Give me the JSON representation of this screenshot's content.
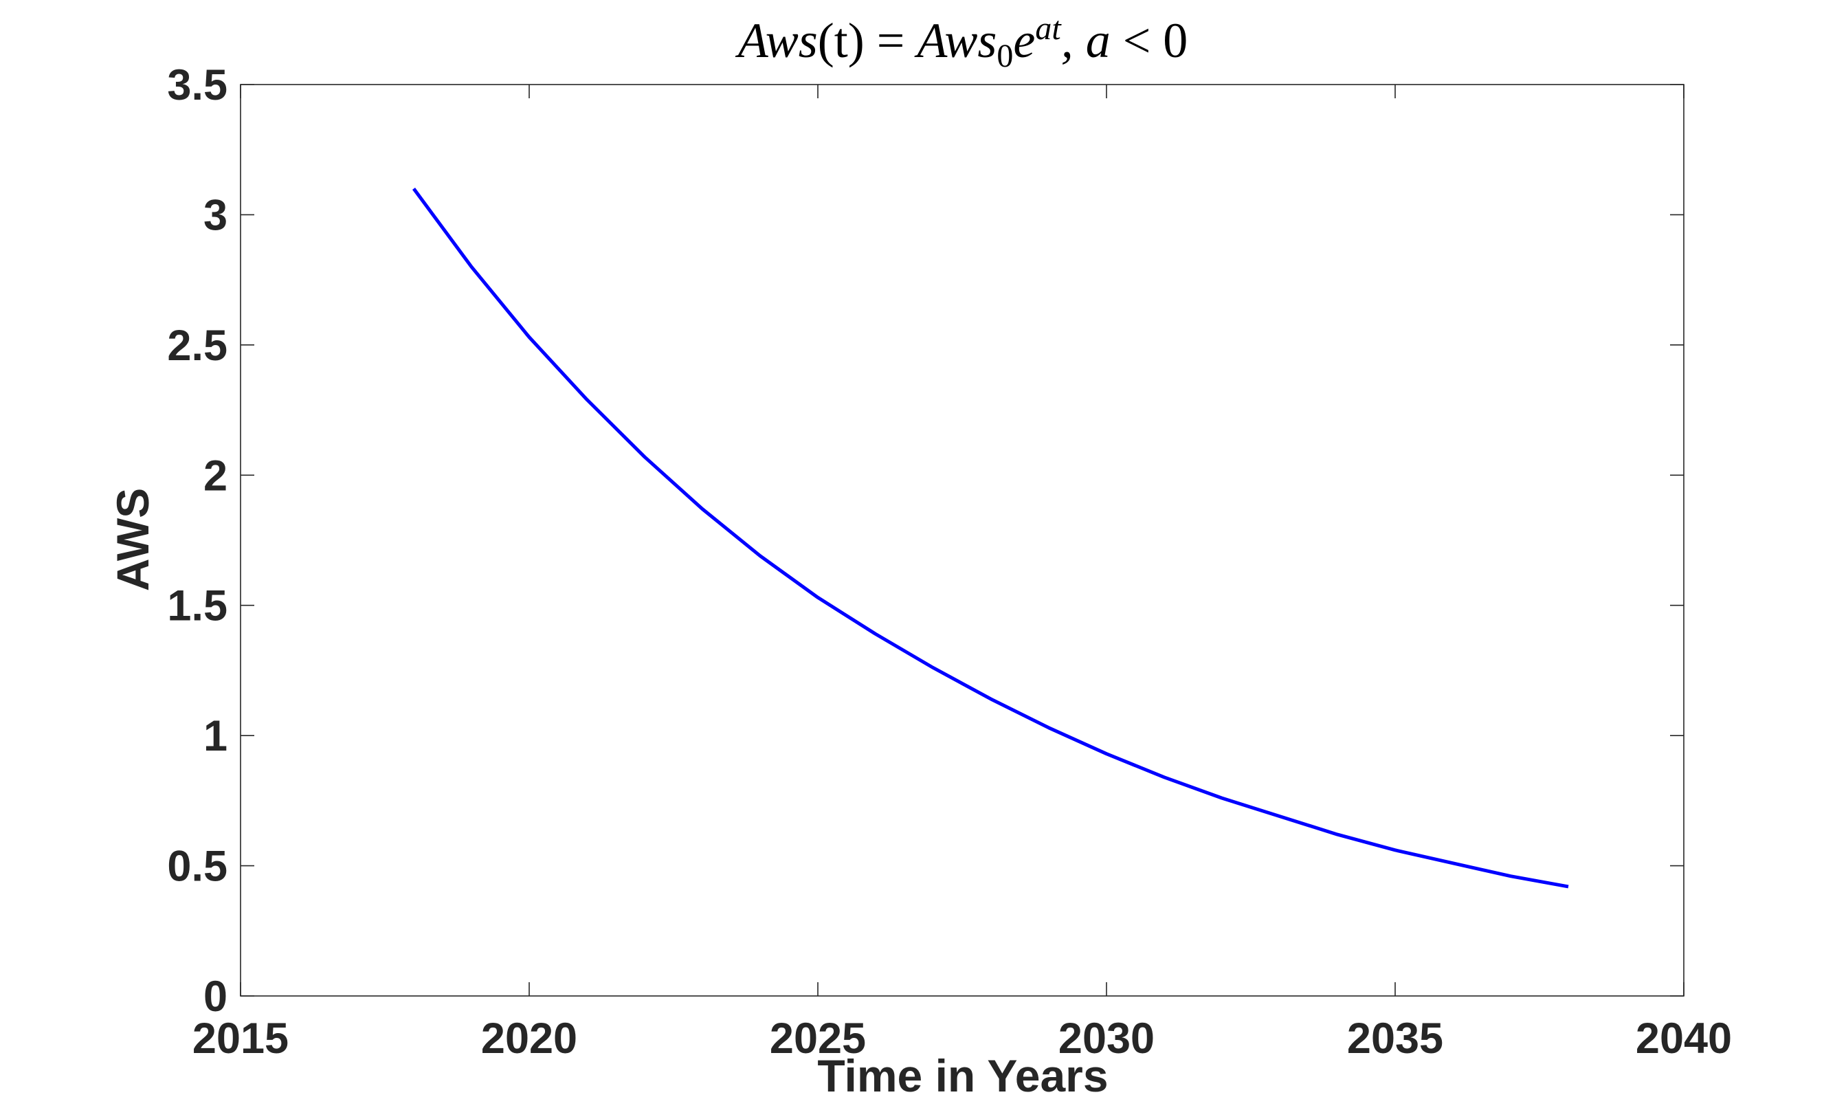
{
  "chart_data": {
    "type": "line",
    "title": {
      "prefix": "Aws",
      "args": "(t) = ",
      "mid": "Aws",
      "sub": "0",
      "base": "e",
      "sup": "at",
      "suffix_var": ", a",
      "suffix_rel": " < 0"
    },
    "xlabel": "Time in Years",
    "ylabel": "AWS",
    "xlim": [
      2015,
      2040
    ],
    "ylim": [
      0,
      3.5
    ],
    "xticks": [
      2015,
      2020,
      2025,
      2030,
      2035,
      2040
    ],
    "xtick_labels": [
      "2015",
      "2020",
      "2025",
      "2030",
      "2035",
      "2040"
    ],
    "yticks": [
      0,
      0.5,
      1,
      1.5,
      2,
      2.5,
      3,
      3.5
    ],
    "ytick_labels": [
      "0",
      "0.5",
      "1",
      "1.5",
      "2",
      "2.5",
      "3",
      "3.5"
    ],
    "grid": false,
    "box": true,
    "series": [
      {
        "color": "#0000ff",
        "x": [
          2018,
          2019,
          2020,
          2021,
          2022,
          2023,
          2024,
          2025,
          2026,
          2027,
          2028,
          2029,
          2030,
          2031,
          2032,
          2033,
          2034,
          2035,
          2036,
          2037,
          2038
        ],
        "y": [
          3.1,
          2.8,
          2.53,
          2.29,
          2.07,
          1.87,
          1.69,
          1.53,
          1.39,
          1.26,
          1.14,
          1.03,
          0.93,
          0.84,
          0.76,
          0.69,
          0.62,
          0.56,
          0.51,
          0.46,
          0.42
        ]
      }
    ]
  }
}
